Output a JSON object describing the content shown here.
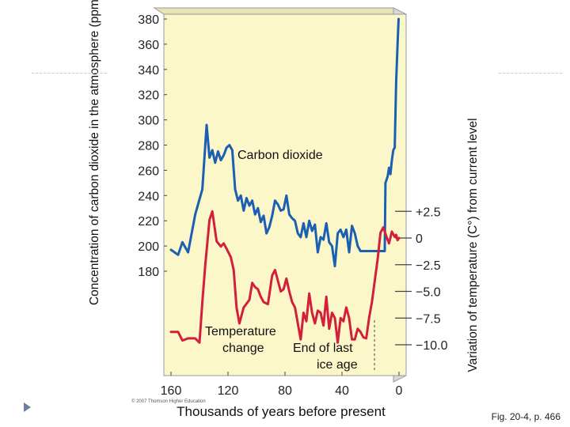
{
  "chart_data": {
    "type": "line",
    "xlabel": "Thousands of years before present",
    "ylabel_left": "Concentration of carbon dioxide in the atmosphere (ppm)",
    "ylabel_right": "Variation of temperature (C°) from current level",
    "x_ticks": [
      160,
      120,
      80,
      40,
      0
    ],
    "x_tick_labels": [
      "160",
      "120",
      "80",
      "40",
      "0"
    ],
    "xlim": [
      165,
      -5
    ],
    "left_axis": {
      "ticks": [
        380,
        360,
        340,
        320,
        300,
        280,
        260,
        240,
        220,
        200,
        180
      ],
      "tick_labels": [
        "380",
        "360",
        "340",
        "320",
        "300",
        "280",
        "260",
        "240",
        "220",
        "200",
        "180"
      ],
      "ylim": [
        110,
        385
      ]
    },
    "right_axis": {
      "ticks": [
        2.5,
        0,
        -2.5,
        -5.0,
        -7.5,
        -10.0
      ],
      "tick_labels": [
        "+2.5",
        "0",
        "−2.5",
        "−5.0",
        "−7.5",
        "−10.0"
      ]
    },
    "series": [
      {
        "name": "Carbon dioxide",
        "axis": "left",
        "color": "#1a5fb4",
        "x": [
          160,
          155,
          152,
          148,
          143,
          138,
          135,
          133,
          131,
          129,
          127,
          125,
          123,
          121,
          119,
          117,
          115,
          113,
          111,
          109,
          107,
          105,
          103,
          101,
          99,
          97,
          95,
          93,
          91,
          89,
          87,
          85,
          83,
          81,
          79,
          77,
          75,
          73,
          71,
          69,
          67,
          65,
          63,
          61,
          59,
          57,
          55,
          53,
          51,
          49,
          47,
          45,
          43,
          41,
          39,
          37,
          35,
          33,
          31,
          29,
          27,
          25,
          23,
          21,
          19,
          17,
          15,
          13,
          11,
          10,
          9.5,
          8,
          7,
          6,
          5,
          4,
          3,
          2,
          1,
          0.3
        ],
        "y": [
          197,
          193,
          203,
          195,
          225,
          245,
          296,
          270,
          276,
          266,
          275,
          268,
          272,
          278,
          280,
          276,
          245,
          236,
          240,
          228,
          238,
          232,
          236,
          225,
          230,
          219,
          224,
          210,
          215,
          224,
          236,
          233,
          228,
          229,
          240,
          225,
          222,
          220,
          210,
          207,
          218,
          207,
          220,
          212,
          217,
          195,
          207,
          205,
          218,
          203,
          200,
          184,
          210,
          213,
          207,
          213,
          195,
          216,
          210,
          200,
          196,
          196,
          196,
          196,
          196,
          196,
          196,
          196,
          196,
          196,
          250,
          255,
          262,
          257,
          268,
          276,
          278,
          330,
          360,
          380
        ]
      },
      {
        "name": "Temperature change",
        "axis": "right",
        "color": "#d21f3c",
        "x": [
          160,
          155,
          152,
          148,
          143,
          140,
          138,
          136,
          133,
          131,
          128,
          125,
          123,
          121,
          118,
          116,
          114,
          112,
          109,
          105,
          103,
          101,
          99,
          97,
          95,
          92,
          89,
          87,
          85,
          83,
          81,
          79,
          77,
          75,
          73,
          71,
          69,
          67,
          65,
          63,
          61,
          59,
          57,
          55,
          53,
          51,
          49,
          47,
          45,
          43,
          41,
          39,
          37,
          35,
          33,
          31,
          29,
          27,
          25,
          23,
          21,
          19,
          17,
          15,
          13,
          11,
          9,
          7,
          5,
          3,
          2,
          1,
          0
        ],
        "y": [
          -8.8,
          -8.8,
          -9.6,
          -9.4,
          -9.4,
          -9.8,
          -6,
          -2.6,
          1.7,
          2.5,
          -0.3,
          -0.8,
          -0.5,
          -1.0,
          -1.8,
          -3.0,
          -6.5,
          -8.0,
          -6.5,
          -5.8,
          -4.2,
          -4.6,
          -4.8,
          -5.5,
          -6.0,
          -6.2,
          -3.5,
          -3.0,
          -4.0,
          -5.0,
          -4.8,
          -3.8,
          -5.0,
          -6.0,
          -6.5,
          -8.0,
          -9.5,
          -7.0,
          -7.8,
          -5.2,
          -7.0,
          -8.0,
          -6.8,
          -7.0,
          -8.2,
          -5.5,
          -8.5,
          -7.0,
          -7.5,
          -9.8,
          -7.5,
          -7.8,
          -6.5,
          -7.5,
          -9.5,
          -9.5,
          -8.5,
          -8.8,
          -9.3,
          -9.4,
          -7.5,
          -6.0,
          -4.0,
          -2.0,
          0.5,
          1.0,
          0.2,
          -0.5,
          0.6,
          0.1,
          0.3,
          -0.2,
          0.0
        ]
      }
    ],
    "annotations": [
      "Carbon dioxide",
      "Temperature",
      "change",
      "End of last",
      "ice age"
    ]
  },
  "footer": {
    "caption": "Fig. 20-4, p. 466",
    "copyright": "© 2007 Thomson Higher Education"
  }
}
